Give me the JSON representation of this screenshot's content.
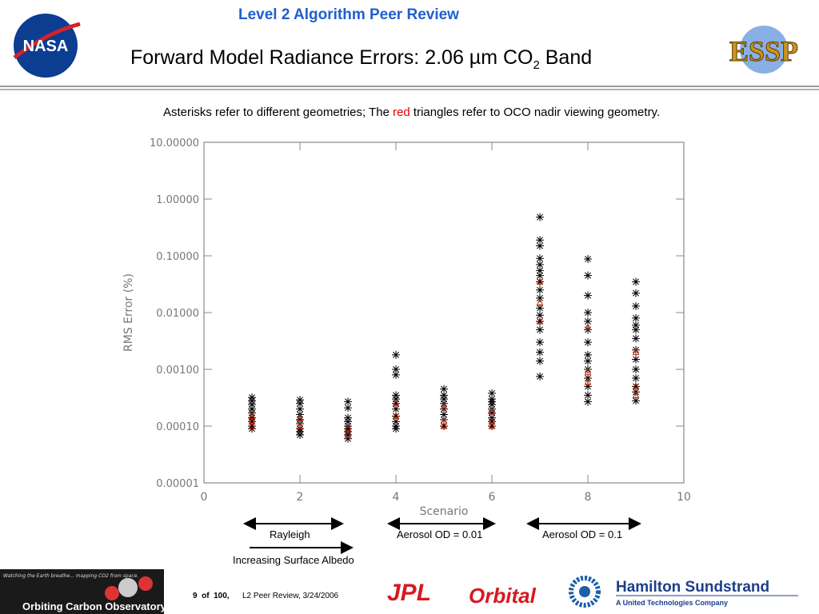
{
  "slide": {
    "header": "Level 2 Algorithm Peer Review",
    "title": "Forward Model Radiance Errors: 2.06 µm CO",
    "title_sub": "2",
    "title_end": " Band",
    "nasa_logo": "NASA",
    "essp_logo": "ESSP",
    "note_start": "Asterisks refer to different geometries; The ",
    "note_red": "red",
    "note_end": " triangles refer to OCO nadir viewing geometry.",
    "footer_page": "9  of  100,",
    "footer_text": "L2 Peer Review, 3/24/2006",
    "oco_tagline": "Watching the Earth breathe... mapping CO2 from space.",
    "oco_name": "Orbiting Carbon Observatory",
    "jpl": "JPL",
    "orbital": "Orbital",
    "hs_name": "Hamilton Sundstrand",
    "hs_sub": "A United Technologies Company"
  },
  "chart_data": {
    "type": "scatter",
    "xlabel": "Scenario",
    "ylabel": "RMS Error (%)",
    "xlim": [
      0,
      10
    ],
    "xticks": [
      0,
      2,
      4,
      6,
      8,
      10
    ],
    "ylim": [
      1e-05,
      10
    ],
    "yscale": "log",
    "yticks": [
      {
        "value": 1e-05,
        "label": "0.00001"
      },
      {
        "value": 0.0001,
        "label": "0.00010"
      },
      {
        "value": 0.001,
        "label": "0.00100"
      },
      {
        "value": 0.01,
        "label": "0.01000"
      },
      {
        "value": 0.1,
        "label": "0.10000"
      },
      {
        "value": 1,
        "label": "1.00000"
      },
      {
        "value": 10,
        "label": "10.00000"
      }
    ],
    "annotations": [
      "Rayleigh",
      "Aerosol OD = 0.01",
      "Aerosol OD = 0.1",
      "Increasing Surface Albedo"
    ],
    "series": [
      {
        "color": "#000000",
        "marker": "asterisk",
        "x": [
          1,
          1,
          1,
          1,
          1,
          1,
          1,
          1,
          1,
          2,
          2,
          2,
          2,
          2,
          2,
          2,
          2,
          2,
          3,
          3,
          3,
          3,
          3,
          3,
          3,
          3,
          3,
          4,
          4,
          4,
          4,
          4,
          4,
          4,
          4,
          4,
          4,
          4,
          5,
          5,
          5,
          5,
          5,
          5,
          5,
          5,
          6,
          6,
          6,
          6,
          6,
          6,
          6,
          6,
          6,
          7,
          7,
          7,
          7,
          7,
          7,
          7,
          7,
          7,
          7,
          7,
          7,
          7,
          7,
          7,
          7,
          7,
          7,
          8,
          8,
          8,
          8,
          8,
          8,
          8,
          8,
          8,
          8,
          8,
          8,
          8,
          8,
          9,
          9,
          9,
          9,
          9,
          9,
          9,
          9,
          9,
          9,
          9,
          9,
          9,
          9
        ],
        "values": [
          0.00032,
          0.00028,
          0.00024,
          0.0002,
          0.00017,
          0.00014,
          0.00012,
          0.0001,
          9e-05,
          0.00029,
          0.00025,
          0.0002,
          0.00016,
          0.00013,
          0.00011,
          9e-05,
          8e-05,
          7e-05,
          0.00027,
          0.00021,
          0.00014,
          0.00012,
          0.0001,
          9e-05,
          8e-05,
          7e-05,
          6e-05,
          0.0018,
          0.001,
          0.0008,
          0.00035,
          0.0003,
          0.00025,
          0.0002,
          0.00015,
          0.00012,
          0.0001,
          9e-05,
          0.00045,
          0.00035,
          0.0003,
          0.00025,
          0.0002,
          0.00016,
          0.00013,
          0.0001,
          0.00038,
          0.0003,
          0.00027,
          0.00024,
          0.0002,
          0.00017,
          0.00014,
          0.00012,
          0.0001,
          0.48,
          0.19,
          0.15,
          0.09,
          0.07,
          0.055,
          0.045,
          0.035,
          0.025,
          0.018,
          0.012,
          0.009,
          0.007,
          0.005,
          0.003,
          0.002,
          0.0014,
          0.00075,
          0.088,
          0.045,
          0.02,
          0.01,
          0.007,
          0.005,
          0.003,
          0.0018,
          0.0014,
          0.001,
          0.0007,
          0.0005,
          0.00035,
          0.00027,
          0.035,
          0.022,
          0.013,
          0.008,
          0.006,
          0.005,
          0.0035,
          0.0022,
          0.0015,
          0.001,
          0.0007,
          0.0005,
          0.0004,
          0.00028
        ]
      },
      {
        "color": "#cc2200",
        "marker": "triangle",
        "x": [
          1,
          1,
          1,
          2,
          2,
          3,
          3,
          4,
          4,
          5,
          5,
          5,
          6,
          6,
          6,
          7,
          7,
          7,
          8,
          8,
          8,
          9,
          9,
          9
        ],
        "values": [
          0.00015,
          0.00012,
          0.0001,
          0.00014,
          0.0001,
          9e-05,
          7e-05,
          0.00025,
          0.00015,
          0.00022,
          0.00012,
          0.0001,
          0.00018,
          0.00012,
          0.0001,
          0.035,
          0.015,
          0.007,
          0.0055,
          0.0009,
          0.0006,
          0.002,
          0.0005,
          0.00035
        ]
      }
    ]
  }
}
